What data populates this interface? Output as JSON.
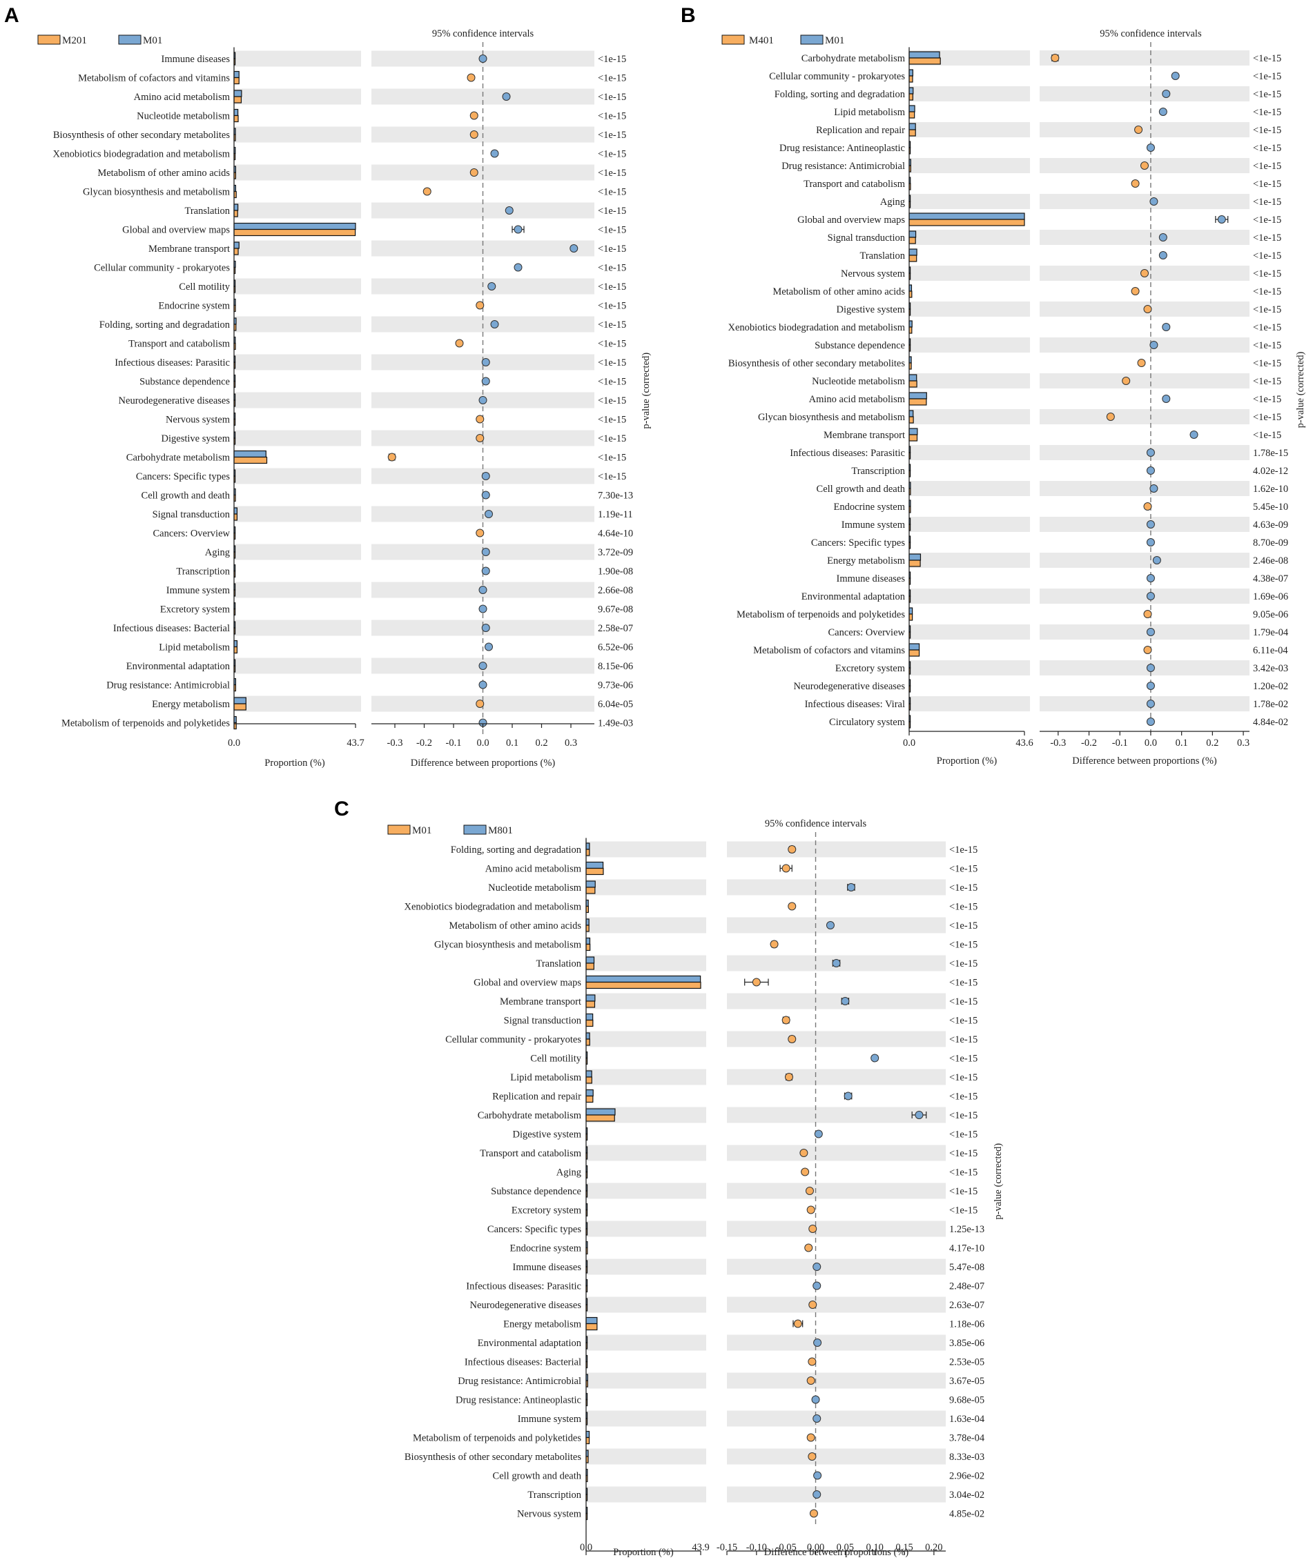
{
  "colors": {
    "orange": "#f7ae60",
    "blue": "#7aa7d2",
    "stripe": "#e9e9e9",
    "bar_edge": "#111111"
  },
  "chart_data": [
    {
      "type": "bar",
      "panel": "A",
      "legend": {
        "series1": "M201",
        "series2": "M01"
      },
      "categories": [
        "Immune diseases",
        "Metabolism of cofactors and vitamins",
        "Amino acid metabolism",
        "Nucleotide metabolism",
        "Biosynthesis of other secondary metabolites",
        "Xenobiotics biodegradation and metabolism",
        "Metabolism of other amino acids",
        "Glycan biosynthesis and metabolism",
        "Translation",
        "Global and overview maps",
        "Membrane transport",
        "Cellular community - prokaryotes",
        "Cell motility",
        "Endocrine system",
        "Folding, sorting and degradation",
        "Transport and catabolism",
        "Infectious diseases: Parasitic",
        "Substance dependence",
        "Neurodegenerative diseases",
        "Nervous system",
        "Digestive system",
        "Carbohydrate metabolism",
        "Cancers: Specific types",
        "Cell growth and death",
        "Signal transduction",
        "Cancers: Overview",
        "Aging",
        "Transcription",
        "Immune system",
        "Excretory system",
        "Infectious diseases: Bacterial",
        "Lipid metabolism",
        "Environmental adaptation",
        "Drug resistance: Antimicrobial",
        "Energy metabolism",
        "Metabolism of terpenoids and polyketides"
      ],
      "series": [
        {
          "name": "M201",
          "values": [
            0.05,
            1.8,
            2.6,
            1.5,
            0.5,
            0.4,
            0.6,
            0.8,
            1.3,
            43.6,
            1.5,
            0.4,
            0.15,
            0.5,
            0.7,
            0.5,
            0.05,
            0.1,
            0.2,
            0.2,
            0.2,
            11.8,
            0.25,
            0.5,
            1.1,
            0.4,
            0.3,
            0.2,
            0.3,
            0.25,
            0.35,
            1.1,
            0.3,
            0.6,
            4.3,
            0.8
          ]
        },
        {
          "name": "M01",
          "values": [
            0.05,
            1.8,
            2.7,
            1.4,
            0.5,
            0.45,
            0.6,
            0.6,
            1.4,
            43.7,
            1.8,
            0.5,
            0.2,
            0.5,
            0.75,
            0.45,
            0.05,
            0.1,
            0.2,
            0.2,
            0.2,
            11.5,
            0.25,
            0.5,
            1.1,
            0.4,
            0.3,
            0.2,
            0.3,
            0.25,
            0.35,
            1.1,
            0.3,
            0.6,
            4.3,
            0.8
          ]
        }
      ],
      "diff": [
        0.0,
        -0.04,
        0.08,
        -0.03,
        -0.03,
        0.04,
        -0.03,
        -0.19,
        0.09,
        0.12,
        0.31,
        0.12,
        0.03,
        -0.01,
        0.04,
        -0.08,
        0.01,
        0.01,
        0.0,
        -0.01,
        -0.01,
        -0.31,
        0.01,
        0.01,
        0.02,
        -0.01,
        0.01,
        0.01,
        0.0,
        0.0,
        0.01,
        0.02,
        0.0,
        0.0,
        -0.01,
        0.0
      ],
      "ci_half": [
        0.002,
        0.004,
        0.005,
        0.004,
        0.003,
        0.003,
        0.003,
        0.004,
        0.005,
        0.02,
        0.006,
        0.004,
        0.003,
        0.003,
        0.003,
        0.003,
        0.002,
        0.002,
        0.002,
        0.002,
        0.002,
        0.01,
        0.002,
        0.002,
        0.003,
        0.002,
        0.002,
        0.002,
        0.002,
        0.002,
        0.002,
        0.003,
        0.002,
        0.002,
        0.004,
        0.002
      ],
      "pvalues": [
        "<1e-15",
        "<1e-15",
        "<1e-15",
        "<1e-15",
        "<1e-15",
        "<1e-15",
        "<1e-15",
        "<1e-15",
        "<1e-15",
        "<1e-15",
        "<1e-15",
        "<1e-15",
        "<1e-15",
        "<1e-15",
        "<1e-15",
        "<1e-15",
        "<1e-15",
        "<1e-15",
        "<1e-15",
        "<1e-15",
        "<1e-15",
        "<1e-15",
        "<1e-15",
        "7.30e-13",
        "1.19e-11",
        "4.64e-10",
        "3.72e-09",
        "1.90e-08",
        "2.66e-08",
        "9.67e-08",
        "2.58e-07",
        "6.52e-06",
        "8.15e-06",
        "9.73e-06",
        "6.04e-05",
        "1.49e-03"
      ],
      "ci_title": "95% confidence intervals",
      "xlabel": "Proportion (%)",
      "xlabel_diff": "Difference between proportions (%)",
      "ylabel_right": "p-value (corrected)",
      "xlim": [
        0,
        43.7
      ],
      "xticks_labels": [
        "0.0",
        "43.7"
      ],
      "diff_xlim": [
        -0.38,
        0.38
      ],
      "diff_ticks": [
        -0.3,
        -0.2,
        -0.1,
        0.0,
        0.1,
        0.2,
        0.3
      ],
      "diff_tick_labels": [
        "-0.3",
        "-0.2",
        "-0.1",
        "0.0",
        "0.1",
        "0.2",
        "0.3"
      ]
    },
    {
      "type": "bar",
      "panel": "B",
      "legend": {
        "series1": "M401",
        "series2": "M01"
      },
      "categories": [
        "Carbohydrate metabolism",
        "Cellular community - prokaryotes",
        "Folding, sorting and degradation",
        "Lipid metabolism",
        "Replication and repair",
        "Drug resistance: Antineoplastic",
        "Drug resistance: Antimicrobial",
        "Transport and catabolism",
        "Aging",
        "Global and overview maps",
        "Signal transduction",
        "Translation",
        "Nervous system",
        "Metabolism of other amino acids",
        "Digestive system",
        "Xenobiotics biodegradation and metabolism",
        "Substance dependence",
        "Biosynthesis of other secondary metabolites",
        "Nucleotide metabolism",
        "Amino acid metabolism",
        "Glycan biosynthesis and metabolism",
        "Membrane transport",
        "Infectious diseases: Parasitic",
        "Transcription",
        "Cell growth and death",
        "Endocrine system",
        "Immune system",
        "Cancers: Specific types",
        "Energy metabolism",
        "Immune diseases",
        "Environmental adaptation",
        "Metabolism of terpenoids and polyketides",
        "Cancers: Overview",
        "Metabolism of cofactors and vitamins",
        "Excretory system",
        "Neurodegenerative diseases",
        "Infectious diseases: Viral",
        "Circulatory system"
      ],
      "series": [
        {
          "name": "M401",
          "values": [
            11.8,
            1.3,
            1.4,
            2.0,
            2.4,
            0.15,
            0.6,
            0.5,
            0.3,
            43.6,
            2.4,
            2.8,
            0.1,
            1.0,
            0.2,
            1.0,
            0.1,
            0.8,
            2.9,
            6.5,
            1.6,
            3.0,
            0.05,
            0.2,
            0.5,
            0.5,
            0.3,
            0.3,
            4.2,
            0.05,
            0.3,
            1.2,
            0.4,
            3.8,
            0.2,
            0.2,
            0.05,
            0.1
          ]
        },
        {
          "name": "M01",
          "values": [
            11.5,
            1.4,
            1.5,
            2.1,
            2.4,
            0.15,
            0.6,
            0.45,
            0.3,
            43.6,
            2.5,
            2.9,
            0.1,
            0.9,
            0.2,
            1.1,
            0.1,
            0.8,
            2.8,
            6.6,
            1.5,
            3.1,
            0.05,
            0.2,
            0.5,
            0.5,
            0.3,
            0.3,
            4.3,
            0.05,
            0.3,
            1.2,
            0.4,
            3.8,
            0.2,
            0.2,
            0.05,
            0.1
          ]
        }
      ],
      "diff": [
        -0.31,
        0.08,
        0.05,
        0.04,
        -0.04,
        0.0,
        -0.02,
        -0.05,
        0.01,
        0.23,
        0.04,
        0.04,
        -0.02,
        -0.05,
        -0.01,
        0.05,
        0.01,
        -0.03,
        -0.08,
        0.05,
        -0.13,
        0.14,
        0.0,
        0.0,
        0.01,
        -0.01,
        0.0,
        0.0,
        0.02,
        0.0,
        0.0,
        -0.01,
        0.0,
        -0.01,
        0.0,
        0.0,
        0.0,
        0.0
      ],
      "ci_half": [
        0.01,
        0.004,
        0.004,
        0.004,
        0.004,
        0.002,
        0.003,
        0.003,
        0.002,
        0.02,
        0.004,
        0.004,
        0.002,
        0.003,
        0.002,
        0.003,
        0.002,
        0.003,
        0.004,
        0.005,
        0.004,
        0.005,
        0.002,
        0.002,
        0.002,
        0.002,
        0.002,
        0.002,
        0.004,
        0.002,
        0.002,
        0.002,
        0.002,
        0.003,
        0.002,
        0.002,
        0.002,
        0.002
      ],
      "pvalues": [
        "<1e-15",
        "<1e-15",
        "<1e-15",
        "<1e-15",
        "<1e-15",
        "<1e-15",
        "<1e-15",
        "<1e-15",
        "<1e-15",
        "<1e-15",
        "<1e-15",
        "<1e-15",
        "<1e-15",
        "<1e-15",
        "<1e-15",
        "<1e-15",
        "<1e-15",
        "<1e-15",
        "<1e-15",
        "<1e-15",
        "<1e-15",
        "<1e-15",
        "1.78e-15",
        "4.02e-12",
        "1.62e-10",
        "5.45e-10",
        "4.63e-09",
        "8.70e-09",
        "2.46e-08",
        "4.38e-07",
        "1.69e-06",
        "9.05e-06",
        "1.79e-04",
        "6.11e-04",
        "3.42e-03",
        "1.20e-02",
        "1.78e-02",
        "4.84e-02"
      ],
      "ci_title": "95% confidence intervals",
      "xlabel": "Proportion (%)",
      "xlabel_diff": "Difference between proportions (%)",
      "ylabel_right": "p-value (corrected)",
      "xlim": [
        0,
        43.6
      ],
      "xticks_labels": [
        "0.0",
        "43.6"
      ],
      "diff_xlim": [
        -0.36,
        0.32
      ],
      "diff_ticks": [
        -0.3,
        -0.2,
        -0.1,
        0.0,
        0.1,
        0.2,
        0.3
      ],
      "diff_tick_labels": [
        "-0.3",
        "-0.2",
        "-0.1",
        "0.0",
        "0.1",
        "0.2",
        "0.3"
      ]
    },
    {
      "type": "bar",
      "panel": "C",
      "legend": {
        "series1": "M01",
        "series2": "M801"
      },
      "categories": [
        "Folding, sorting and degradation",
        "Amino acid metabolism",
        "Nucleotide metabolism",
        "Xenobiotics biodegradation and metabolism",
        "Metabolism of other amino acids",
        "Glycan biosynthesis and metabolism",
        "Translation",
        "Global and overview maps",
        "Membrane transport",
        "Signal transduction",
        "Cellular community - prokaryotes",
        "Cell motility",
        "Lipid metabolism",
        "Replication and repair",
        "Carbohydrate metabolism",
        "Digestive system",
        "Transport and catabolism",
        "Aging",
        "Substance dependence",
        "Excretory system",
        "Cancers: Specific types",
        "Endocrine system",
        "Immune diseases",
        "Infectious diseases: Parasitic",
        "Neurodegenerative diseases",
        "Energy metabolism",
        "Environmental adaptation",
        "Infectious diseases: Bacterial",
        "Drug resistance: Antimicrobial",
        "Drug resistance: Antineoplastic",
        "Immune system",
        "Metabolism of terpenoids and polyketides",
        "Biosynthesis of other secondary metabolites",
        "Cell growth and death",
        "Transcription",
        "Nervous system"
      ],
      "series": [
        {
          "name": "M01",
          "values": [
            1.3,
            6.6,
            3.4,
            0.9,
            1.1,
            1.5,
            3.0,
            43.9,
            3.3,
            2.6,
            1.4,
            0.2,
            2.2,
            2.6,
            10.9,
            0.05,
            0.4,
            0.3,
            0.1,
            0.2,
            0.3,
            0.5,
            0.05,
            0.05,
            0.2,
            4.2,
            0.3,
            0.4,
            0.6,
            0.15,
            0.3,
            1.2,
            0.8,
            0.5,
            0.2,
            0.1
          ]
        },
        {
          "name": "M801",
          "values": [
            1.3,
            6.5,
            3.5,
            0.85,
            1.1,
            1.45,
            3.05,
            43.8,
            3.4,
            2.55,
            1.35,
            0.25,
            2.15,
            2.7,
            11.1,
            0.05,
            0.4,
            0.3,
            0.1,
            0.2,
            0.3,
            0.5,
            0.05,
            0.05,
            0.2,
            4.2,
            0.3,
            0.4,
            0.6,
            0.15,
            0.3,
            1.2,
            0.8,
            0.5,
            0.2,
            0.1
          ]
        }
      ],
      "diff": [
        -0.04,
        -0.05,
        0.06,
        -0.04,
        0.025,
        -0.07,
        0.035,
        -0.1,
        0.05,
        -0.05,
        -0.04,
        0.1,
        -0.045,
        0.055,
        0.175,
        0.005,
        -0.02,
        -0.018,
        -0.01,
        -0.008,
        -0.005,
        -0.012,
        0.002,
        0.002,
        -0.005,
        -0.03,
        0.003,
        -0.006,
        -0.008,
        0.0,
        0.002,
        -0.008,
        -0.006,
        0.003,
        0.002,
        -0.003
      ],
      "ci_half": [
        0.004,
        0.01,
        0.006,
        0.003,
        0.003,
        0.004,
        0.006,
        0.02,
        0.006,
        0.005,
        0.004,
        0.003,
        0.005,
        0.006,
        0.012,
        0.002,
        0.003,
        0.002,
        0.002,
        0.002,
        0.002,
        0.002,
        0.002,
        0.002,
        0.002,
        0.008,
        0.002,
        0.002,
        0.002,
        0.002,
        0.002,
        0.002,
        0.002,
        0.002,
        0.002,
        0.002
      ],
      "pvalues": [
        "<1e-15",
        "<1e-15",
        "<1e-15",
        "<1e-15",
        "<1e-15",
        "<1e-15",
        "<1e-15",
        "<1e-15",
        "<1e-15",
        "<1e-15",
        "<1e-15",
        "<1e-15",
        "<1e-15",
        "<1e-15",
        "<1e-15",
        "<1e-15",
        "<1e-15",
        "<1e-15",
        "<1e-15",
        "<1e-15",
        "1.25e-13",
        "4.17e-10",
        "5.47e-08",
        "2.48e-07",
        "2.63e-07",
        "1.18e-06",
        "3.85e-06",
        "2.53e-05",
        "3.67e-05",
        "9.68e-05",
        "1.63e-04",
        "3.78e-04",
        "8.33e-03",
        "2.96e-02",
        "3.04e-02",
        "4.85e-02"
      ],
      "ci_title": "95% confidence intervals",
      "xlabel": "Proportion (%)",
      "xlabel_diff": "Difference between proportions (%)",
      "ylabel_right": "p-value (corrected)",
      "xlim": [
        0,
        43.9
      ],
      "xticks_labels": [
        "0.0",
        "43.9"
      ],
      "diff_xlim": [
        -0.15,
        0.22
      ],
      "diff_ticks": [
        -0.15,
        -0.1,
        -0.05,
        0.0,
        0.05,
        0.1,
        0.15,
        0.2
      ],
      "diff_tick_labels": [
        "-0.15",
        "-0.10",
        "-0.05",
        "0.00",
        "0.05",
        "0.10",
        "0.15",
        "0.20"
      ]
    }
  ]
}
